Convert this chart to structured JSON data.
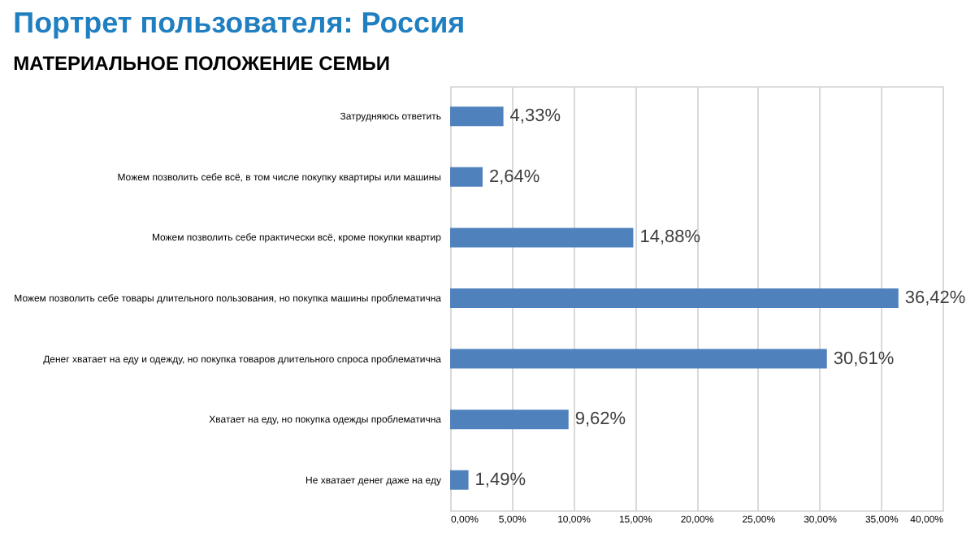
{
  "chart_data": {
    "type": "bar",
    "orientation": "horizontal",
    "title": "Портрет пользователя: Россия",
    "subtitle": "МАТЕРИАЛЬНОЕ ПОЛОЖЕНИЕ СЕМЬИ",
    "categories": [
      "Затрудняюсь ответить",
      "Можем позволить себе всё, в том числе покупку квартиры или машины",
      "Можем позволить себе практически всё, кроме покупки квартир",
      "Можем позволить себе товары длительного пользования, но покупка машины проблематична",
      "Денег хватает на еду и одежду, но покупка товаров длительного спроса проблематична",
      "Хватает на еду, но покупка одежды проблематична",
      "Не хватает денег даже на еду"
    ],
    "values": [
      4.33,
      2.64,
      14.88,
      36.42,
      30.61,
      9.62,
      1.49
    ],
    "value_labels": [
      "4,33%",
      "2,64%",
      "14,88%",
      "36,42%",
      "30,61%",
      "9,62%",
      "1,49%"
    ],
    "color": "#4f81bd",
    "xlim": [
      0,
      40
    ],
    "xticks": [
      {
        "value": 0,
        "label": "0,00%"
      },
      {
        "value": 5,
        "label": "5,00%"
      },
      {
        "value": 10,
        "label": "10,00%"
      },
      {
        "value": 15,
        "label": "15,00%"
      },
      {
        "value": 20,
        "label": "20,00%"
      },
      {
        "value": 25,
        "label": "25,00%"
      },
      {
        "value": 30,
        "label": "30,00%"
      },
      {
        "value": 35,
        "label": "35,00%"
      },
      {
        "value": 40,
        "label": "40,00%"
      }
    ],
    "grid": "x"
  }
}
